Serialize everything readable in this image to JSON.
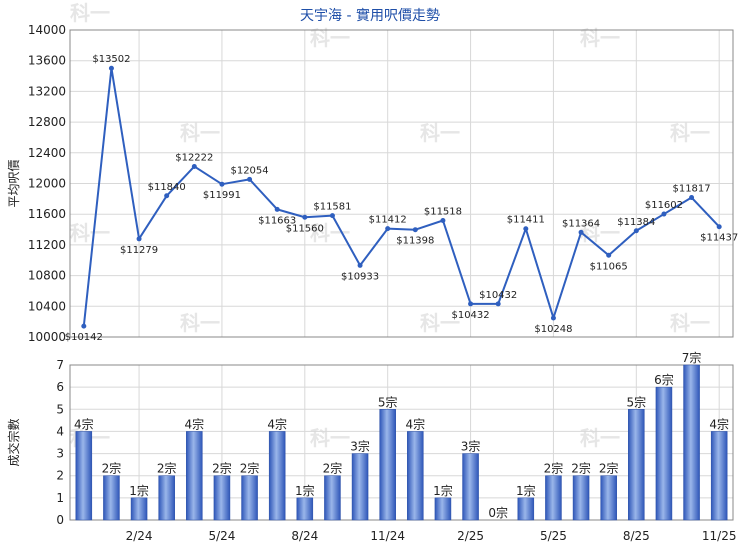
{
  "title": "天宇海 - 實用呎價走勢",
  "watermark": "科一",
  "colors": {
    "line": "#2f5fbf",
    "bar_light": "#9ab6ea",
    "bar_dark": "#2e56b8",
    "grid": "#d8d8d8",
    "axis": "#888888",
    "title": "#1f4fa8"
  },
  "chart_data": [
    {
      "type": "line",
      "ylabel": "平均呎價",
      "ylim": [
        10000,
        14000
      ],
      "yticks": [
        10000,
        10400,
        10800,
        11200,
        11600,
        12000,
        12400,
        12800,
        13200,
        13600,
        14000
      ],
      "grid": true,
      "series": [
        {
          "values": [
            10142,
            13502,
            11279,
            11840,
            12222,
            11991,
            12054,
            11663,
            11560,
            11581,
            10933,
            11412,
            11398,
            11518,
            10432,
            10432,
            11411,
            10248,
            11364,
            11065,
            11384,
            11602,
            11817,
            11437
          ],
          "labels": [
            "$10142",
            "$13502",
            "$11279",
            "$11840",
            "$12222",
            "$11991",
            "$12054",
            "$11663",
            "$11560",
            "$11581",
            "$10933",
            "$11412",
            "$11398",
            "$11518",
            "$10432",
            "$10432",
            "$11411",
            "$10248",
            "$11364",
            "$11065",
            "$11384",
            "$11602",
            "$11817",
            "$11437"
          ]
        }
      ]
    },
    {
      "type": "bar",
      "ylabel": "成交宗數",
      "ylim": [
        0,
        7
      ],
      "yticks": [
        0,
        1,
        2,
        3,
        4,
        5,
        6,
        7
      ],
      "xtick_labels": [
        "2/24",
        "5/24",
        "8/24",
        "11/24",
        "2/25",
        "5/25",
        "8/25",
        "11/25"
      ],
      "grid": true,
      "values": [
        4,
        2,
        1,
        2,
        4,
        2,
        2,
        4,
        1,
        2,
        3,
        5,
        4,
        1,
        3,
        0,
        1,
        2,
        2,
        2,
        5,
        6,
        7,
        4
      ],
      "labels": [
        "4宗",
        "2宗",
        "1宗",
        "2宗",
        "4宗",
        "2宗",
        "2宗",
        "4宗",
        "1宗",
        "2宗",
        "3宗",
        "5宗",
        "4宗",
        "1宗",
        "3宗",
        "0宗",
        "1宗",
        "2宗",
        "2宗",
        "2宗",
        "5宗",
        "6宗",
        "7宗",
        "4宗"
      ]
    }
  ]
}
